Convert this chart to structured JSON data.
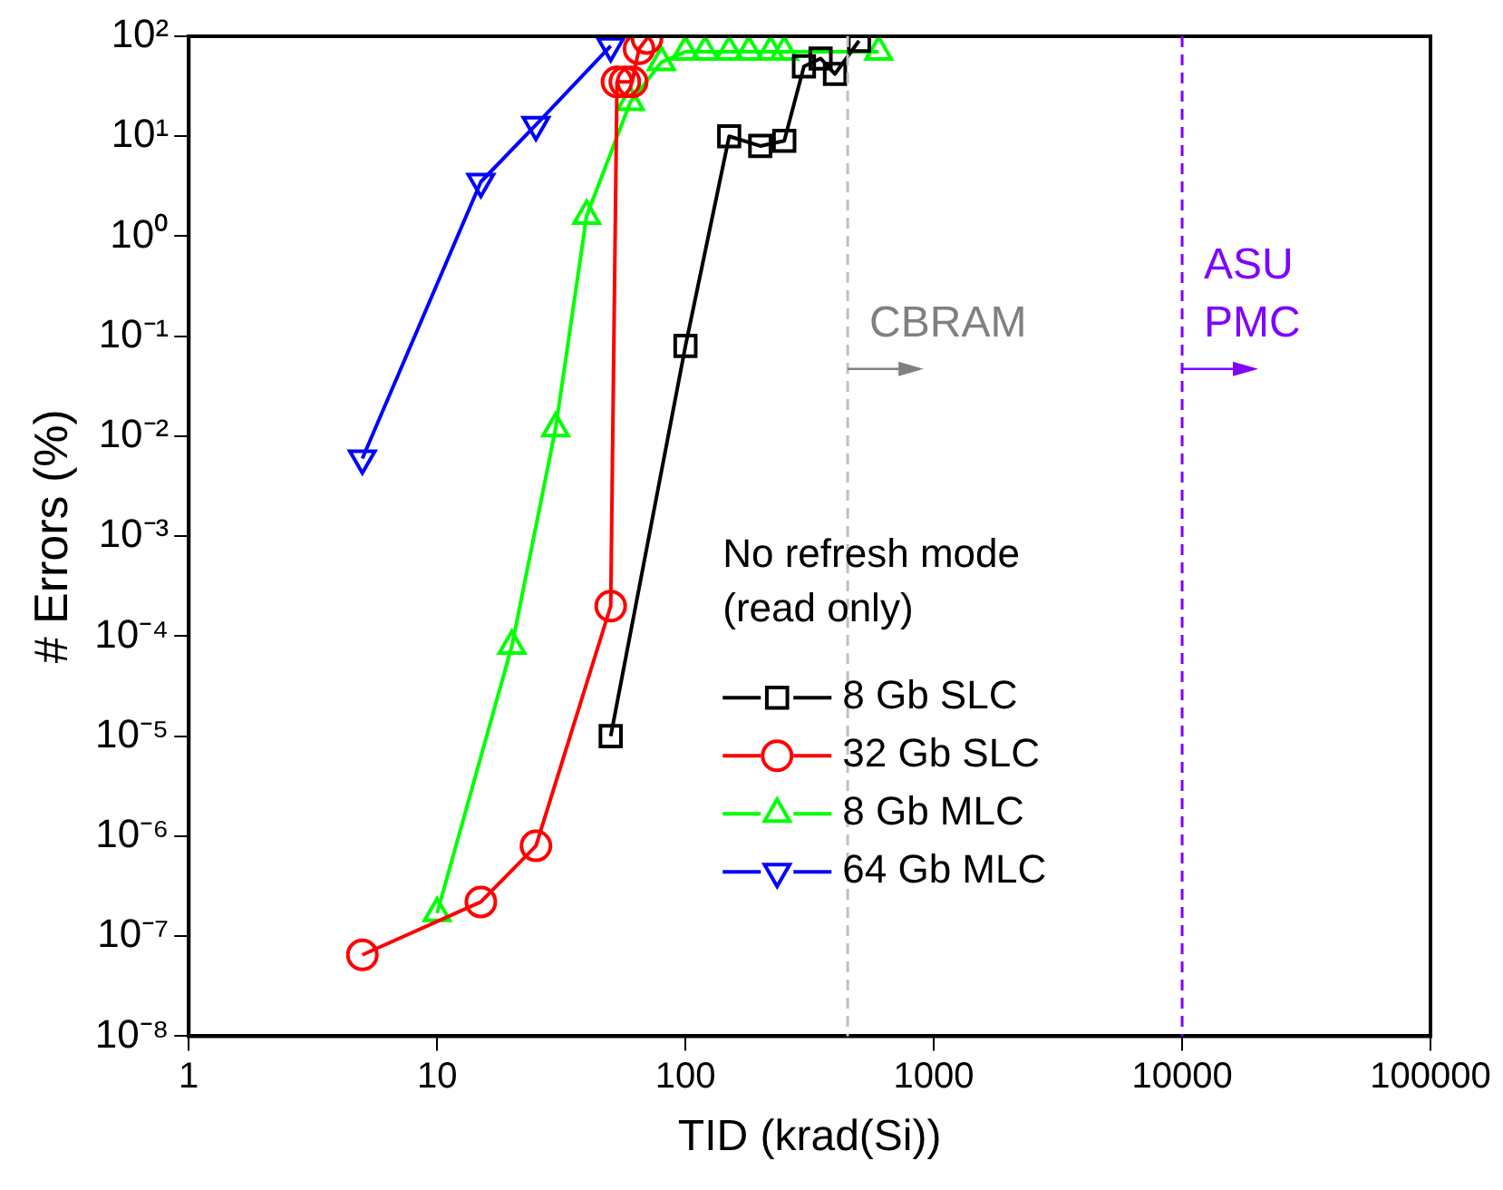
{
  "chart_data": {
    "type": "line",
    "xlabel": "TID (krad(Si))",
    "ylabel": "# Errors (%)",
    "log": "xy",
    "xlim": [
      1,
      100000
    ],
    "xticks": [
      1,
      10,
      100,
      1000,
      10000,
      100000
    ],
    "ylim": [
      1e-08,
      100
    ],
    "yticks": [
      {
        "value": 1e-08,
        "label": "10⁻⁸"
      },
      {
        "value": 1e-07,
        "label": "10⁻⁷"
      },
      {
        "value": 1e-06,
        "label": "10⁻⁶"
      },
      {
        "value": 1e-05,
        "label": "10⁻⁵"
      },
      {
        "value": 0.0001,
        "label": "10⁻⁴"
      },
      {
        "value": 0.001,
        "label": "10⁻³"
      },
      {
        "value": 0.01,
        "label": "10⁻²"
      },
      {
        "value": 0.1,
        "label": "10⁻¹"
      },
      {
        "value": 1,
        "label": "10⁰"
      },
      {
        "value": 10,
        "label": "10¹"
      },
      {
        "value": 100,
        "label": "10²"
      }
    ],
    "grid": false,
    "legend": "bottom right",
    "legend_title": "No refresh mode\n(read only)",
    "line_style": "solid",
    "series": [
      {
        "name": "8 Gb SLC",
        "color": "#000000",
        "marker": "square",
        "x": [
          50,
          100,
          150,
          200,
          250,
          300,
          350,
          400,
          500
        ],
        "values": [
          1e-05,
          0.08,
          10,
          8,
          9,
          50,
          60,
          42,
          90
        ]
      },
      {
        "name": "32 Gb SLC",
        "color": "#ff0000",
        "marker": "circle",
        "x": [
          5,
          15,
          25,
          50,
          53,
          57,
          61,
          65,
          70
        ],
        "values": [
          6.5e-08,
          2.2e-07,
          8e-07,
          0.0002,
          35,
          35,
          35,
          75,
          95
        ]
      },
      {
        "name": "8 Gb MLC",
        "color": "#00ff00",
        "marker": "triangle",
        "x": [
          10,
          20,
          30,
          40,
          60,
          80,
          100,
          120,
          150,
          180,
          220,
          250,
          600
        ],
        "values": [
          1.7e-07,
          8e-05,
          0.012,
          1.6,
          22,
          55,
          70,
          70,
          70,
          70,
          70,
          70,
          70
        ]
      },
      {
        "name": "64 Gb MLC",
        "color": "#0000ff",
        "marker": "triangle-down",
        "x": [
          5,
          15,
          25,
          50
        ],
        "values": [
          0.006,
          3.5,
          13,
          80
        ]
      }
    ],
    "ref_lines": [
      {
        "axis": "x",
        "value": 450,
        "label": "CBRAM",
        "color": "#c0c0c0",
        "line_style": "dashed"
      },
      {
        "axis": "x",
        "value": 10000,
        "label": "ASU\nPMC",
        "color": "#8000ff",
        "line_style": "dashed"
      }
    ]
  }
}
